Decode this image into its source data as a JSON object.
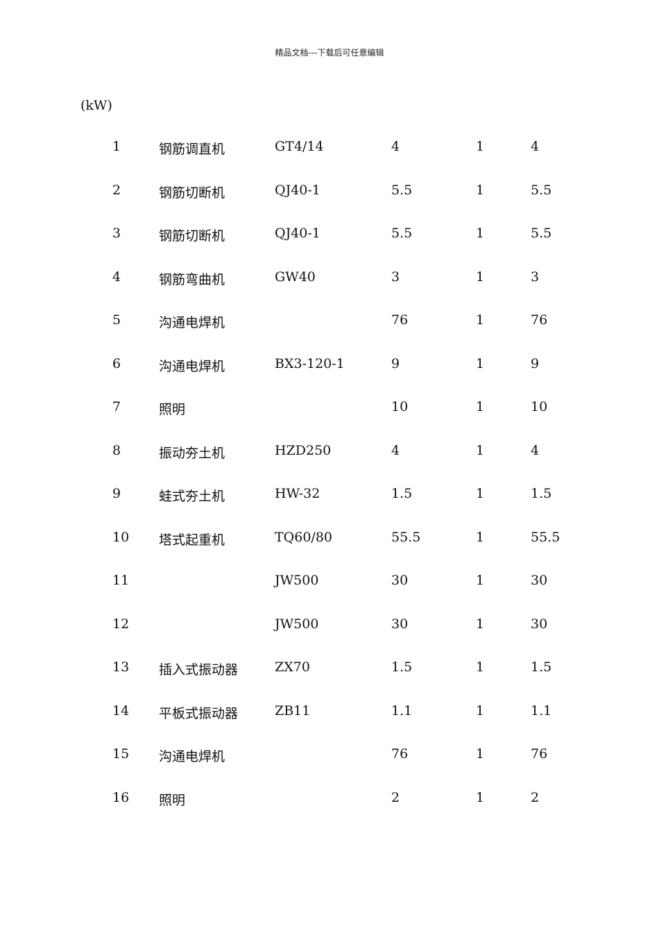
{
  "header": "精品文档---下载后可任意编辑",
  "unit_label": "(kW)",
  "rows": [
    [
      "1",
      "钢筋调直机",
      "GT4/14",
      "4",
      "1",
      "4"
    ],
    [
      "2",
      "钢筋切断机",
      "QJ40-1",
      "5.5",
      "1",
      "5.5"
    ],
    [
      "3",
      "钢筋切断机",
      "QJ40-1",
      "5.5",
      "1",
      "5.5"
    ],
    [
      "4",
      "钢筋弯曲机",
      "GW40",
      "3",
      "1",
      "3"
    ],
    [
      "5",
      "沟通电焊机",
      "",
      "76",
      "1",
      "76"
    ],
    [
      "6",
      "沟通电焊机",
      "BX3-120-1",
      "9",
      "1",
      "9"
    ],
    [
      "7",
      "照明",
      "",
      "10",
      "1",
      "10"
    ],
    [
      "8",
      "振动夯土机",
      "HZD250",
      "4",
      "1",
      "4"
    ],
    [
      "9",
      "蛙式夯土机",
      "HW-32",
      "1.5",
      "1",
      "1.5"
    ],
    [
      "10",
      "塔式起重机",
      "TQ60/80",
      "55.5",
      "1",
      "55.5"
    ],
    [
      "11",
      "",
      "JW500",
      "30",
      "1",
      "30"
    ],
    [
      "12",
      "",
      "JW500",
      "30",
      "1",
      "30"
    ],
    [
      "13",
      "插入式振动器",
      "ZX70",
      "1.5",
      "1",
      "1.5"
    ],
    [
      "14",
      "平板式振动器",
      "ZB11",
      "1.1",
      "1",
      "1.1"
    ],
    [
      "15",
      "沟通电焊机",
      "",
      "76",
      "1",
      "76"
    ],
    [
      "16",
      "照明",
      "",
      "2",
      "1",
      "2"
    ]
  ]
}
